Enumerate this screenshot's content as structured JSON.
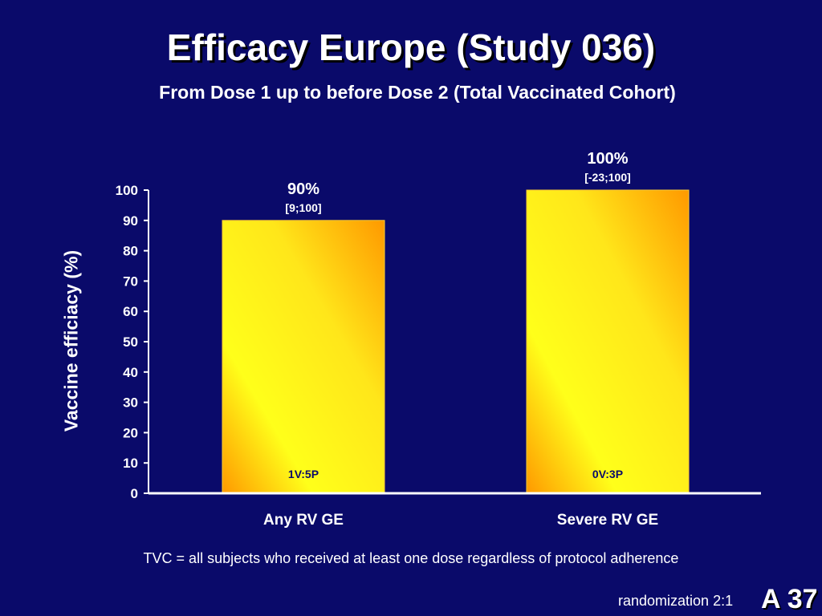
{
  "slide": {
    "title": "Efficacy Europe (Study 036)",
    "subtitle": "From Dose 1 up to before Dose 2 (Total Vaccinated Cohort)",
    "footnote": "TVC = all subjects who received at least one dose regardless of protocol adherence",
    "randomization": "randomization 2:1",
    "slide_code": "A 37"
  },
  "chart_data": {
    "type": "bar",
    "title": "",
    "xlabel": "",
    "ylabel": "Vaccine efficiacy (%)",
    "ylim": [
      0,
      100
    ],
    "yticks": [
      0,
      10,
      20,
      30,
      40,
      50,
      60,
      70,
      80,
      90,
      100
    ],
    "grid": false,
    "categories": [
      "Any RV GE",
      "Severe RV GE"
    ],
    "values": [
      90,
      100
    ],
    "value_labels": [
      "90%",
      "100%"
    ],
    "confidence_intervals": [
      "[9;100]",
      "[-23;100]"
    ],
    "case_counts": [
      "1V:5P",
      "0V:3P"
    ],
    "colors": {
      "background": "#0a0a6a",
      "bar_light": "#ffff1a",
      "bar_dark": "#ff9900",
      "axis": "#ffffff",
      "bar_inner_label": "#0a0a6a"
    }
  }
}
